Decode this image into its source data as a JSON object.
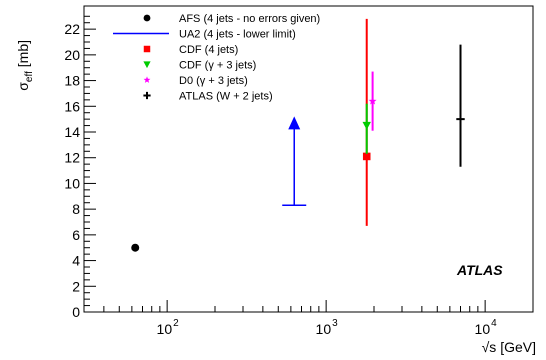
{
  "chart_data": {
    "type": "scatter",
    "xlabel": "√s [GeV]",
    "ylabel": "σ",
    "ylabel_sub": "eff",
    "ylabel_unit": " [mb]",
    "x_scale": "log",
    "xlim": [
      30,
      20000
    ],
    "ylim": [
      0,
      23.8
    ],
    "y_ticks": [
      0,
      2,
      4,
      6,
      8,
      10,
      12,
      14,
      16,
      18,
      20,
      22
    ],
    "x_ticks": [
      {
        "value": 100,
        "base": "10",
        "exp": "2"
      },
      {
        "value": 1000,
        "base": "10",
        "exp": "3"
      },
      {
        "value": 10000,
        "base": "10",
        "exp": "4"
      }
    ],
    "grid": false,
    "legend_position": "top-left",
    "annotation": "ATLAS",
    "series": [
      {
        "name": "AFS (4 jets - no errors given)",
        "color": "#000000",
        "marker": "circle",
        "points": [
          {
            "x": 63,
            "y": 5.0
          }
        ]
      },
      {
        "name": "UA2 (4 jets - lower limit)",
        "color": "#0000ff",
        "marker": "lower-limit",
        "points": [
          {
            "x": 630,
            "y": 8.3,
            "limit_top": 14.9
          }
        ]
      },
      {
        "name": "CDF (4 jets)",
        "color": "#ff0000",
        "marker": "square",
        "points": [
          {
            "x": 1800,
            "y": 12.1,
            "err_low": 5.4,
            "err_high": 10.7
          }
        ]
      },
      {
        "name": "CDF (γ + 3 jets)",
        "color": "#00cc00",
        "marker": "triangle-down",
        "points": [
          {
            "x": 1800,
            "y": 14.5,
            "err_low": 2.2,
            "err_high": 1.7
          }
        ]
      },
      {
        "name": "D0 (γ + 3 jets)",
        "color": "#ff00ff",
        "marker": "star",
        "points": [
          {
            "x": 1960,
            "y": 16.4,
            "err_low": 2.3,
            "err_high": 2.3
          }
        ]
      },
      {
        "name": "ATLAS (W + 2 jets)",
        "color": "#000000",
        "marker": "cross",
        "points": [
          {
            "x": 7000,
            "y": 15.0,
            "err_low": 3.7,
            "err_high": 5.8
          }
        ]
      }
    ]
  }
}
